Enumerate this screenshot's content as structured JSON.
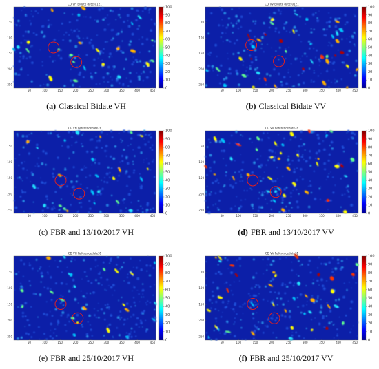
{
  "figure": {
    "axes": {
      "xlim": [
        0,
        460
      ],
      "ylim": [
        0,
        260
      ],
      "xticks": [
        50,
        100,
        150,
        200,
        250,
        300,
        350,
        400,
        450
      ],
      "yticks": [
        50,
        100,
        150,
        200,
        250
      ]
    },
    "colorbar": {
      "lim": [
        0,
        100
      ],
      "ticks": [
        0,
        10,
        20,
        30,
        40,
        50,
        60,
        70,
        80,
        90,
        100
      ]
    },
    "panels": [
      {
        "title": "CD VH Bidate dates0121",
        "label": "(a)",
        "caption": "Classical Bidate VH",
        "bold_label": true
      },
      {
        "title": "CD VV Bidate dates0121",
        "label": "(b)",
        "caption": "Classical Bidate VV",
        "bold_label": true
      },
      {
        "title": "CD VH Referencedate28",
        "label": "(c)",
        "caption": "FBR and 13/10/2017 VH",
        "bold_label": false
      },
      {
        "title": "CD VV Referencedate28",
        "label": "(d)",
        "caption": "FBR and 13/10/2017 VV",
        "bold_label": true
      },
      {
        "title": "CD VH Referencedate31",
        "label": "(e)",
        "caption": "FBR and 25/10/2017 VH",
        "bold_label": false
      },
      {
        "title": "CD VV Referencedate31",
        "label": "(f)",
        "caption": "FBR and 25/10/2017 VV",
        "bold_label": true
      }
    ]
  }
}
